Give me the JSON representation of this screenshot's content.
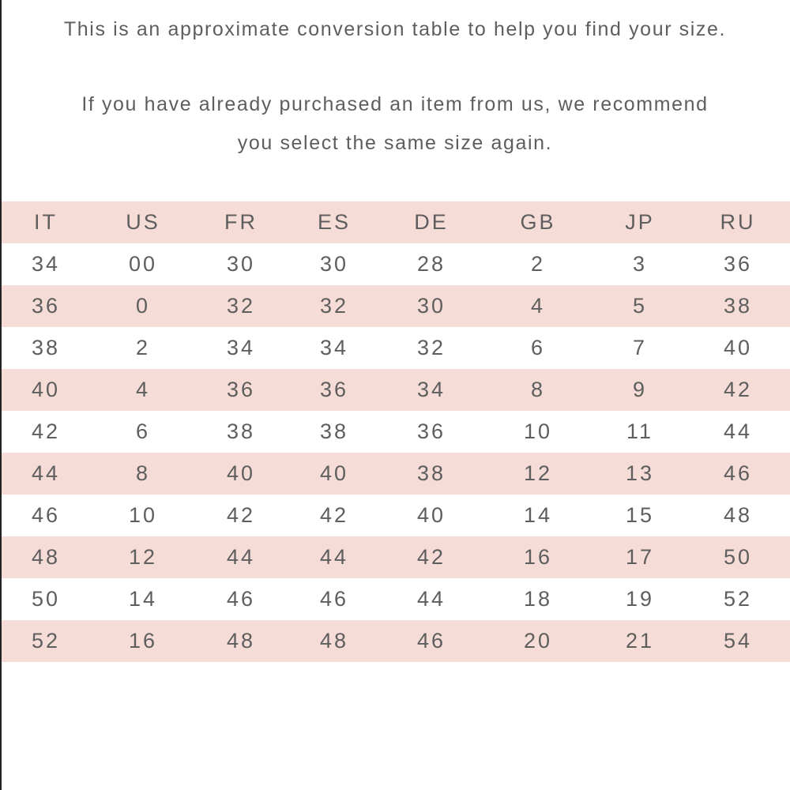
{
  "intro": {
    "line": "This is an approximate conversion table to help you find your size.",
    "paragraph_lines": [
      "If you have already purchased an item from us, we recommend",
      "you select the same size again."
    ]
  },
  "table": {
    "header": [
      "IT",
      "US",
      "FR",
      "ES",
      "DE",
      "GB",
      "JP",
      "RU"
    ],
    "rows": [
      [
        "34",
        "00",
        "30",
        "30",
        "28",
        "2",
        "3",
        "36"
      ],
      [
        "36",
        "0",
        "32",
        "32",
        "30",
        "4",
        "5",
        "38"
      ],
      [
        "38",
        "2",
        "34",
        "34",
        "32",
        "6",
        "7",
        "40"
      ],
      [
        "40",
        "4",
        "36",
        "36",
        "34",
        "8",
        "9",
        "42"
      ],
      [
        "42",
        "6",
        "38",
        "38",
        "36",
        "10",
        "11",
        "44"
      ],
      [
        "44",
        "8",
        "40",
        "40",
        "38",
        "12",
        "13",
        "46"
      ],
      [
        "46",
        "10",
        "42",
        "42",
        "40",
        "14",
        "15",
        "48"
      ],
      [
        "48",
        "12",
        "44",
        "44",
        "42",
        "16",
        "17",
        "50"
      ],
      [
        "50",
        "14",
        "46",
        "46",
        "44",
        "18",
        "19",
        "52"
      ],
      [
        "52",
        "16",
        "48",
        "48",
        "46",
        "20",
        "21",
        "54"
      ]
    ]
  }
}
